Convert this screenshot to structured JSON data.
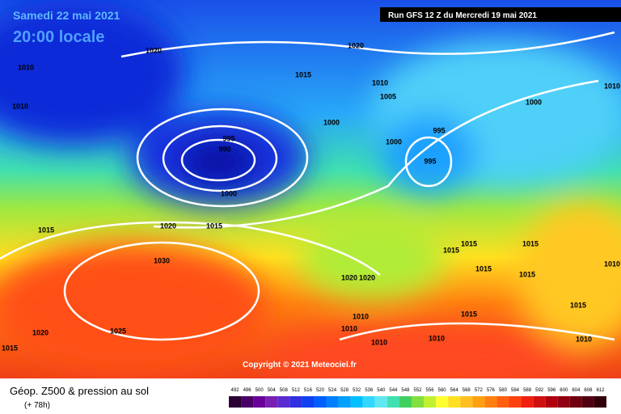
{
  "header": {
    "date": "Samedi 22 mai 2021",
    "time": "20:00 locale",
    "run": "Run GFS 12 Z du Mercredi 19 mai 2021"
  },
  "map": {
    "copyright": "Copyright © 2021 Meteociel.fr",
    "isobar_labels": [
      1020,
      1020,
      1010,
      1010,
      1015,
      1010,
      1005,
      1000,
      1000,
      1010,
      995,
      990,
      995,
      1000,
      995,
      1000,
      1020,
      1015,
      1015,
      1030,
      1015,
      1015,
      1015,
      1015,
      1015,
      1010,
      1020,
      1020,
      1010,
      1010,
      1015,
      1015,
      1010,
      1010,
      1010,
      1025,
      1020,
      1015
    ]
  },
  "legend": {
    "title": "Géop. Z500 & pression au sol",
    "lead": "(+ 78h)",
    "scale": [
      492,
      496,
      500,
      504,
      508,
      512,
      516,
      520,
      524,
      528,
      532,
      536,
      540,
      544,
      548,
      552,
      556,
      560,
      564,
      568,
      572,
      576,
      580,
      584,
      588,
      592,
      596,
      600,
      604,
      608,
      612
    ],
    "colors": [
      "#2a0033",
      "#4b0066",
      "#6a0099",
      "#7a1fb3",
      "#5a2bd0",
      "#3030e0",
      "#1040f0",
      "#0060ff",
      "#0080ff",
      "#00a0ff",
      "#00c0ff",
      "#30d8ff",
      "#60e8f0",
      "#40e0b0",
      "#40d060",
      "#80e040",
      "#c0f030",
      "#ffff30",
      "#ffe020",
      "#ffc020",
      "#ffa010",
      "#ff8010",
      "#ff6010",
      "#ff4010",
      "#f02010",
      "#d01010",
      "#b00010",
      "#900010",
      "#700010",
      "#500010",
      "#300008"
    ]
  }
}
